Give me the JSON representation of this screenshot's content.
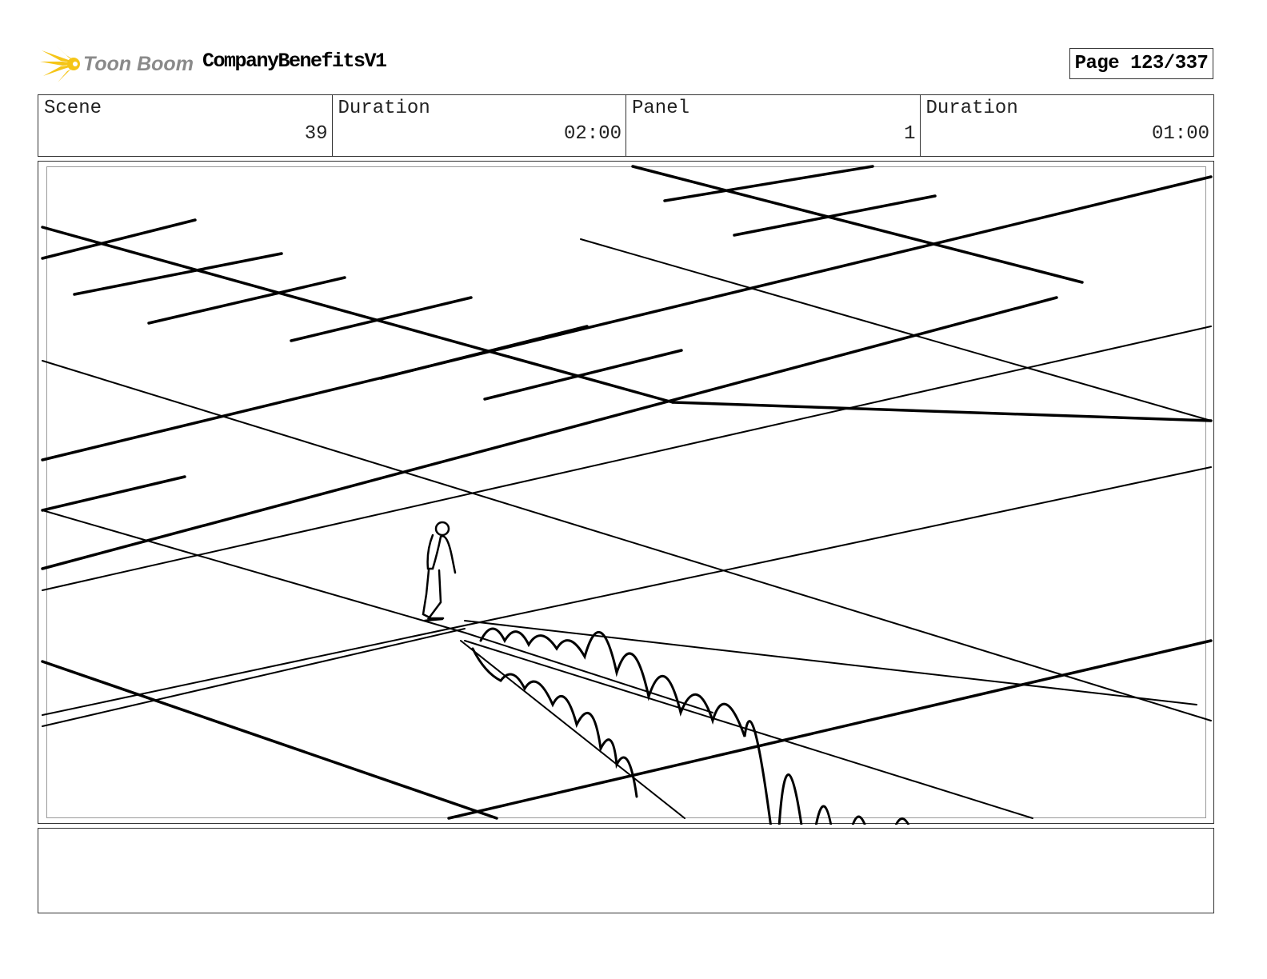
{
  "header": {
    "logo_text": "Toon Boom",
    "project_title": "CompanyBenefitsV1",
    "page_label": "Page 123/337"
  },
  "info": [
    {
      "label": "Scene",
      "value": "39"
    },
    {
      "label": "Duration",
      "value": "02:00"
    },
    {
      "label": "Panel",
      "value": "1"
    },
    {
      "label": "Duration",
      "value": "01:00"
    }
  ],
  "panel": {
    "image": "sketch of a small figure walking on a perspective grid floor with a looping zigzag wedge shape"
  },
  "notes": {
    "text": ""
  },
  "colors": {
    "logo_accent": "#f5c518",
    "logo_text": "#8a8a8a",
    "border": "#333333"
  }
}
